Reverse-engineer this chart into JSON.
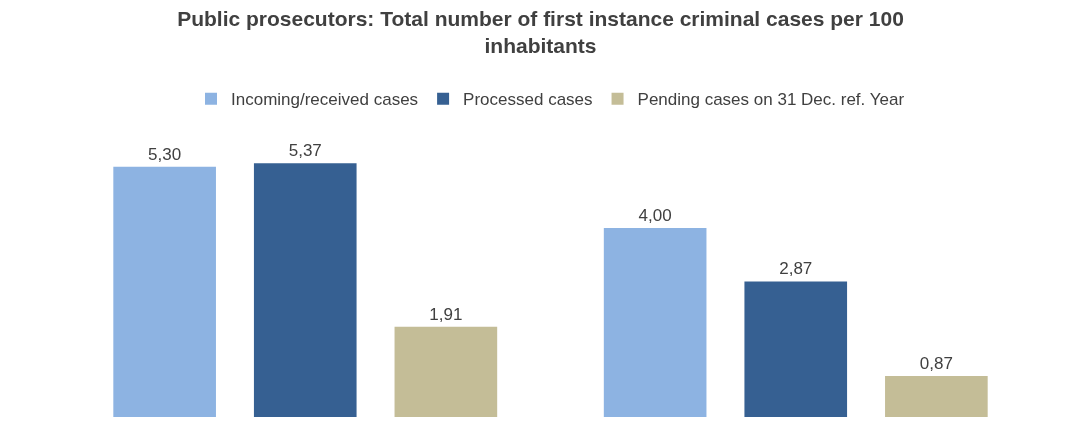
{
  "chart_data": {
    "type": "bar",
    "title": "Public prosecutors: Total number of first instance criminal cases per 100 inhabitants",
    "categories": [
      null,
      null
    ],
    "series": [
      {
        "name": "Incoming/received cases",
        "color": "#8db3e2",
        "values": [
          5.3,
          4.0
        ],
        "value_labels": [
          "5,30",
          "4,00"
        ]
      },
      {
        "name": "Processed cases",
        "color": "#366092",
        "values": [
          5.37,
          2.87
        ],
        "value_labels": [
          "5,37",
          "2,87"
        ]
      },
      {
        "name": "Pending cases on 31 Dec. ref. Year",
        "color": "#c4bd97",
        "values": [
          1.91,
          0.87
        ],
        "value_labels": [
          "1,91",
          "0,87"
        ]
      }
    ],
    "legend": "top",
    "grid": false,
    "tick_labels": false
  }
}
